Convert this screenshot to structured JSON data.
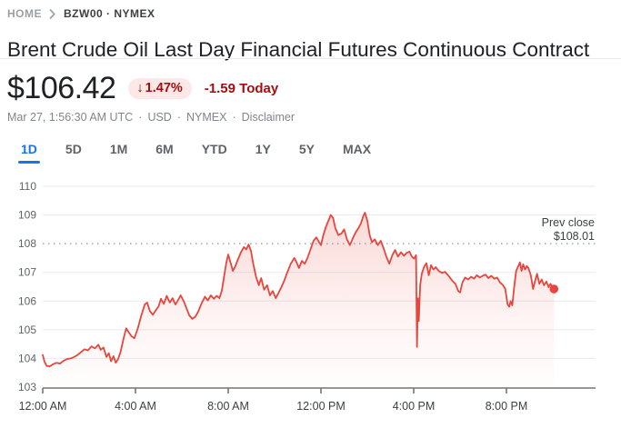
{
  "breadcrumb": {
    "home": "HOME",
    "symbol": "BZW00 · NYMEX"
  },
  "title": "Brent Crude Oil Last Day Financial Futures Continuous Contract",
  "quote": {
    "price": "$106.42",
    "change_arrow": "↓",
    "change_percent": "1.47%",
    "change_amount": "-1.59 Today",
    "meta_items": [
      "Mar 27, 1:56:30 AM UTC",
      "USD",
      "NYMEX",
      "Disclaimer"
    ],
    "meta_separator": "·"
  },
  "tabs": {
    "items": [
      {
        "label": "1D",
        "active": true
      },
      {
        "label": "5D",
        "active": false
      },
      {
        "label": "1M",
        "active": false
      },
      {
        "label": "6M",
        "active": false
      },
      {
        "label": "YTD",
        "active": false
      },
      {
        "label": "1Y",
        "active": false
      },
      {
        "label": "5Y",
        "active": false
      },
      {
        "label": "MAX",
        "active": false
      }
    ]
  },
  "colors": {
    "line": "#e8453c",
    "badge_bg": "#fce8e6",
    "change_text": "#a50e0e",
    "active_tab": "#1a73e8",
    "grid": "#e8eaed",
    "prev_close_dots": "#9aa0a6",
    "axis": "#757575",
    "y_label": "#5f6368",
    "x_label": "#3c4043",
    "annotation": "#3c4043"
  },
  "chart_data": {
    "type": "line",
    "x_unit": "hours_since_midnight",
    "ylim": [
      103,
      110
    ],
    "grid": true,
    "y_ticks": [
      110,
      109,
      108,
      107,
      106,
      105,
      104,
      103
    ],
    "x_ticks": [
      {
        "hour": 0,
        "label": "12:00 AM"
      },
      {
        "hour": 4,
        "label": "4:00 AM"
      },
      {
        "hour": 8,
        "label": "8:00 AM"
      },
      {
        "hour": 12,
        "label": "12:00 PM"
      },
      {
        "hour": 16,
        "label": "4:00 PM"
      },
      {
        "hour": 20,
        "label": "8:00 PM"
      }
    ],
    "prev_close": {
      "label": "Prev close",
      "display": "$108.01",
      "value": 108.01
    },
    "last": {
      "value": 106.42
    },
    "points": [
      [
        0,
        104.12
      ],
      [
        0.08,
        103.88
      ],
      [
        0.17,
        103.74
      ],
      [
        0.3,
        103.72
      ],
      [
        0.45,
        103.8
      ],
      [
        0.6,
        103.85
      ],
      [
        0.75,
        103.82
      ],
      [
        0.9,
        103.92
      ],
      [
        1.05,
        103.98
      ],
      [
        1.2,
        104.0
      ],
      [
        1.35,
        104.05
      ],
      [
        1.5,
        104.12
      ],
      [
        1.65,
        104.22
      ],
      [
        1.8,
        104.32
      ],
      [
        1.95,
        104.28
      ],
      [
        2.1,
        104.42
      ],
      [
        2.25,
        104.35
      ],
      [
        2.4,
        104.48
      ],
      [
        2.5,
        104.3
      ],
      [
        2.62,
        104.38
      ],
      [
        2.75,
        104.05
      ],
      [
        2.85,
        104.18
      ],
      [
        2.95,
        103.9
      ],
      [
        3.05,
        104.08
      ],
      [
        3.15,
        103.85
      ],
      [
        3.25,
        103.98
      ],
      [
        3.35,
        104.2
      ],
      [
        3.5,
        104.75
      ],
      [
        3.6,
        105.05
      ],
      [
        3.7,
        104.92
      ],
      [
        3.82,
        104.78
      ],
      [
        3.95,
        104.7
      ],
      [
        4.1,
        105.05
      ],
      [
        4.25,
        105.5
      ],
      [
        4.4,
        105.88
      ],
      [
        4.5,
        105.95
      ],
      [
        4.62,
        105.65
      ],
      [
        4.75,
        105.52
      ],
      [
        4.88,
        105.68
      ],
      [
        5.0,
        105.82
      ],
      [
        5.1,
        106.08
      ],
      [
        5.22,
        105.9
      ],
      [
        5.35,
        106.18
      ],
      [
        5.48,
        105.95
      ],
      [
        5.6,
        106.1
      ],
      [
        5.72,
        105.88
      ],
      [
        5.85,
        106.05
      ],
      [
        5.95,
        106.2
      ],
      [
        6.08,
        106.0
      ],
      [
        6.2,
        105.75
      ],
      [
        6.32,
        105.5
      ],
      [
        6.45,
        105.38
      ],
      [
        6.58,
        105.45
      ],
      [
        6.7,
        105.62
      ],
      [
        6.85,
        105.92
      ],
      [
        7.0,
        106.15
      ],
      [
        7.12,
        106.02
      ],
      [
        7.25,
        106.2
      ],
      [
        7.38,
        106.08
      ],
      [
        7.5,
        106.18
      ],
      [
        7.62,
        106.1
      ],
      [
        7.72,
        106.35
      ],
      [
        7.82,
        106.85
      ],
      [
        7.92,
        107.35
      ],
      [
        8.0,
        107.62
      ],
      [
        8.1,
        107.35
      ],
      [
        8.2,
        107.05
      ],
      [
        8.3,
        107.2
      ],
      [
        8.42,
        107.45
      ],
      [
        8.55,
        107.7
      ],
      [
        8.68,
        107.88
      ],
      [
        8.78,
        107.8
      ],
      [
        8.88,
        107.97
      ],
      [
        8.98,
        107.75
      ],
      [
        9.08,
        107.3
      ],
      [
        9.2,
        106.85
      ],
      [
        9.32,
        106.55
      ],
      [
        9.42,
        106.8
      ],
      [
        9.55,
        106.4
      ],
      [
        9.68,
        106.55
      ],
      [
        9.8,
        106.2
      ],
      [
        9.92,
        106.35
      ],
      [
        10.05,
        106.1
      ],
      [
        10.18,
        106.3
      ],
      [
        10.3,
        106.5
      ],
      [
        10.42,
        106.72
      ],
      [
        10.55,
        107.0
      ],
      [
        10.7,
        107.3
      ],
      [
        10.85,
        107.5
      ],
      [
        10.95,
        107.35
      ],
      [
        11.05,
        107.15
      ],
      [
        11.18,
        107.4
      ],
      [
        11.3,
        107.3
      ],
      [
        11.42,
        107.5
      ],
      [
        11.55,
        107.8
      ],
      [
        11.68,
        108.1
      ],
      [
        11.8,
        108.22
      ],
      [
        11.92,
        108.05
      ],
      [
        12.0,
        107.95
      ],
      [
        12.1,
        108.3
      ],
      [
        12.22,
        108.6
      ],
      [
        12.32,
        108.8
      ],
      [
        12.42,
        109.0
      ],
      [
        12.52,
        108.9
      ],
      [
        12.62,
        108.55
      ],
      [
        12.75,
        108.3
      ],
      [
        12.88,
        108.35
      ],
      [
        13.0,
        108.5
      ],
      [
        13.12,
        108.15
      ],
      [
        13.25,
        107.95
      ],
      [
        13.38,
        108.2
      ],
      [
        13.5,
        108.4
      ],
      [
        13.62,
        108.55
      ],
      [
        13.72,
        108.7
      ],
      [
        13.82,
        108.95
      ],
      [
        13.9,
        109.08
      ],
      [
        14.0,
        108.8
      ],
      [
        14.1,
        108.3
      ],
      [
        14.2,
        108.05
      ],
      [
        14.32,
        108.15
      ],
      [
        14.45,
        107.95
      ],
      [
        14.58,
        108.1
      ],
      [
        14.7,
        107.85
      ],
      [
        14.82,
        107.55
      ],
      [
        14.95,
        107.3
      ],
      [
        15.08,
        107.6
      ],
      [
        15.2,
        107.78
      ],
      [
        15.32,
        107.55
      ],
      [
        15.45,
        107.7
      ],
      [
        15.58,
        107.58
      ],
      [
        15.7,
        107.68
      ],
      [
        15.82,
        107.72
      ],
      [
        15.92,
        107.55
      ],
      [
        16.02,
        107.48
      ],
      [
        16.1,
        107.6
      ],
      [
        16.14,
        104.4
      ],
      [
        16.18,
        106.1
      ],
      [
        16.22,
        105.3
      ],
      [
        16.28,
        106.55
      ],
      [
        16.35,
        106.95
      ],
      [
        16.45,
        107.2
      ],
      [
        16.55,
        107.32
      ],
      [
        16.65,
        106.9
      ],
      [
        16.75,
        107.25
      ],
      [
        16.85,
        107.1
      ],
      [
        16.95,
        107.18
      ],
      [
        17.08,
        107.05
      ],
      [
        17.22,
        106.98
      ],
      [
        17.35,
        107.02
      ],
      [
        17.5,
        106.88
      ],
      [
        17.65,
        106.72
      ],
      [
        17.8,
        106.6
      ],
      [
        17.92,
        106.35
      ],
      [
        18.0,
        106.3
      ],
      [
        18.1,
        106.65
      ],
      [
        18.22,
        106.82
      ],
      [
        18.35,
        106.75
      ],
      [
        18.48,
        106.85
      ],
      [
        18.6,
        106.78
      ],
      [
        18.72,
        106.9
      ],
      [
        18.85,
        106.82
      ],
      [
        18.98,
        106.88
      ],
      [
        19.1,
        106.92
      ],
      [
        19.22,
        106.8
      ],
      [
        19.35,
        106.88
      ],
      [
        19.48,
        106.78
      ],
      [
        19.6,
        106.82
      ],
      [
        19.72,
        106.65
      ],
      [
        19.85,
        106.55
      ],
      [
        19.95,
        106.42
      ],
      [
        20.05,
        105.88
      ],
      [
        20.12,
        105.8
      ],
      [
        20.18,
        106.0
      ],
      [
        20.25,
        105.85
      ],
      [
        20.35,
        106.6
      ],
      [
        20.42,
        107.05
      ],
      [
        20.5,
        107.2
      ],
      [
        20.58,
        107.35
      ],
      [
        20.65,
        107.05
      ],
      [
        20.72,
        107.28
      ],
      [
        20.8,
        107.1
      ],
      [
        20.88,
        107.22
      ],
      [
        20.95,
        107.15
      ],
      [
        21.05,
        106.9
      ],
      [
        21.15,
        106.42
      ],
      [
        21.25,
        106.75
      ],
      [
        21.32,
        106.95
      ],
      [
        21.42,
        106.6
      ],
      [
        21.52,
        106.75
      ],
      [
        21.62,
        106.55
      ],
      [
        21.72,
        106.68
      ],
      [
        21.82,
        106.48
      ],
      [
        21.9,
        106.6
      ],
      [
        22.0,
        106.45
      ],
      [
        22.05,
        106.42
      ]
    ]
  }
}
